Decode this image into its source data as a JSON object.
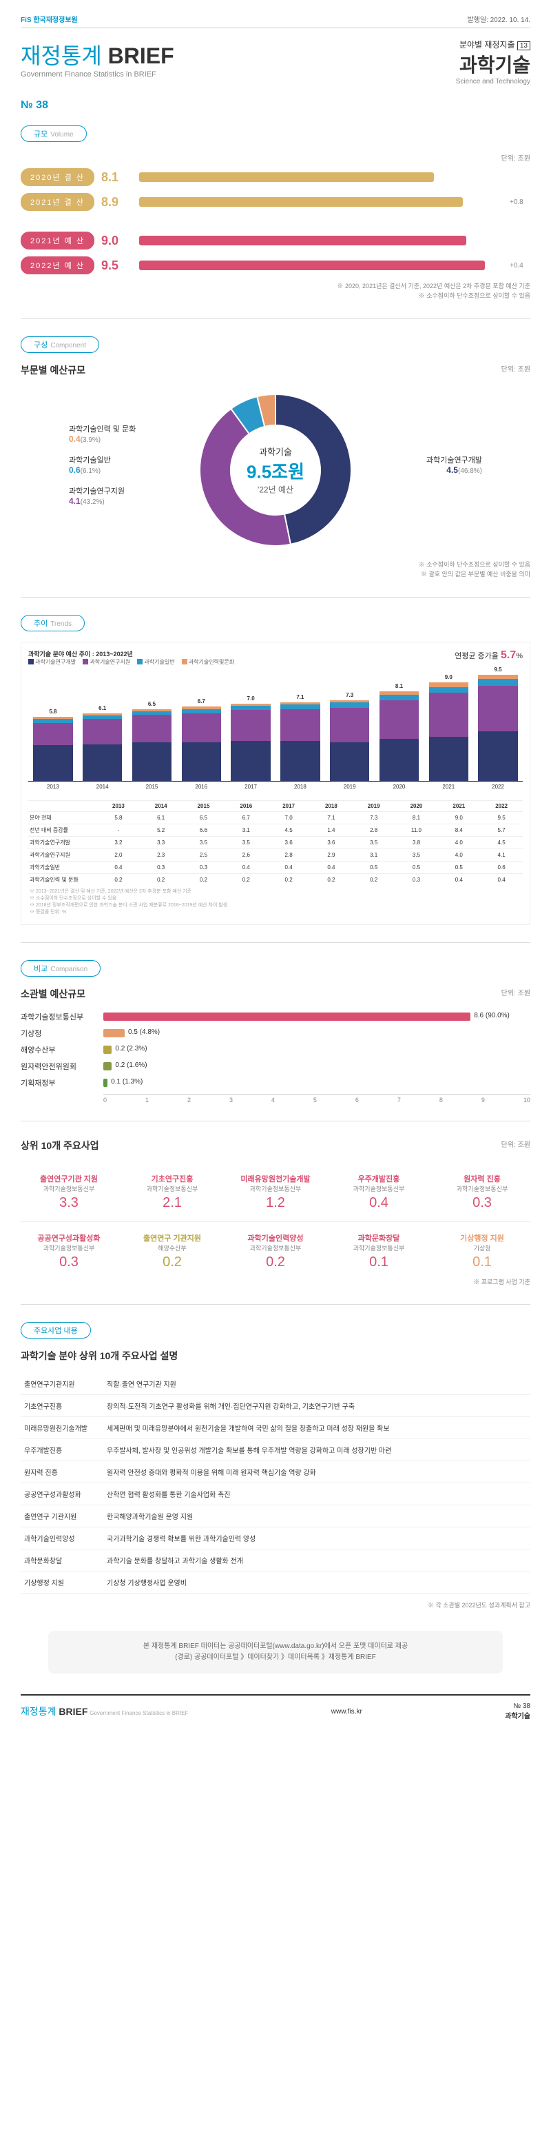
{
  "meta": {
    "logo": "FiS 한국재정정보원",
    "pub_date": "발행일: 2022. 10. 14.",
    "main_title_a": "재정통계",
    "main_title_b": "BRIEF",
    "sub_en": "Government Finance Statistics in BRIEF",
    "category": "분야별 재정지출",
    "category_num": "13",
    "topic": "과학기술",
    "topic_en": "Science and Technology",
    "issue": "№ 38"
  },
  "volume": {
    "label": "규모",
    "label_en": "Volume",
    "unit": "단위: 조원",
    "rows": [
      {
        "badge": "2020년 결 산",
        "value": "8.1",
        "bar_pct": 81,
        "color": "#d9b366",
        "value_color": "#d9b366"
      },
      {
        "badge": "2021년 결 산",
        "value": "8.9",
        "bar_pct": 89,
        "color": "#d9b366",
        "value_color": "#d9b366",
        "diff": "+0.8"
      },
      {
        "gap": true
      },
      {
        "badge": "2021년 예 산",
        "value": "9.0",
        "bar_pct": 90,
        "color": "#d94f70",
        "value_color": "#d94f70"
      },
      {
        "badge": "2022년 예 산",
        "value": "9.5",
        "bar_pct": 95,
        "color": "#d94f70",
        "value_color": "#d94f70",
        "diff": "+0.4"
      }
    ],
    "footnotes": [
      "※ 2020, 2021년은 결산서 기준, 2022년 예산은 2차 추경분 포함 예산 기준",
      "※ 소수점이하 단수조정으로 상이할 수 있음"
    ]
  },
  "component": {
    "label": "구성",
    "label_en": "Component",
    "heading": "부문별 예산규모",
    "unit": "단위: 조원",
    "center": {
      "t1": "과학기술",
      "t2": "9.5조원",
      "t3": "'22년 예산"
    },
    "left": [
      {
        "name": "과학기술인력 및 문화",
        "val": "0.4",
        "pct": "(3.9%)",
        "color": "#e89b6a"
      },
      {
        "name": "과학기술일반",
        "val": "0.6",
        "pct": "(6.1%)",
        "color": "#2a99c9"
      },
      {
        "name": "과학기술연구지원",
        "val": "4.1",
        "pct": "(43.2%)",
        "color": "#8a4a9c"
      }
    ],
    "right": [
      {
        "name": "과학기술연구개발",
        "val": "4.5",
        "pct": "(46.8%)",
        "color": "#2f3a6e"
      }
    ],
    "slices": [
      {
        "pct": 46.8,
        "color": "#2f3a6e"
      },
      {
        "pct": 43.2,
        "color": "#8a4a9c"
      },
      {
        "pct": 6.1,
        "color": "#2a99c9"
      },
      {
        "pct": 3.9,
        "color": "#e89b6a"
      }
    ],
    "footnotes": [
      "※ 소수점이하 단수조정으로 상이할 수 있음",
      "※ 괄호 안의 값은 부문별 예산 비중을 의미"
    ]
  },
  "trends": {
    "label": "추이",
    "label_en": "Trends",
    "title": "과학기술 분야 예산 추이 : 2013~2022년",
    "growth_label": "연평균 증가율",
    "growth_val": "5.7",
    "growth_unit": "%",
    "legends": [
      {
        "name": "과학기술연구개발",
        "color": "#2f3a6e"
      },
      {
        "name": "과학기술연구지원",
        "color": "#8a4a9c"
      },
      {
        "name": "과학기술일반",
        "color": "#2a99c9"
      },
      {
        "name": "과학기술인력및문화",
        "color": "#e89b6a"
      }
    ],
    "years": [
      "2013",
      "2014",
      "2015",
      "2016",
      "2017",
      "2018",
      "2019",
      "2020",
      "2021",
      "2022"
    ],
    "totals": [
      "5.8",
      "6.1",
      "6.5",
      "6.7",
      "7.0",
      "7.1",
      "7.3",
      "8.1",
      "9.0",
      "9.5"
    ],
    "stacks_color": [
      "#2f3a6e",
      "#8a4a9c",
      "#2a99c9",
      "#e89b6a"
    ],
    "stacks": [
      [
        3.2,
        2.0,
        0.4,
        0.2
      ],
      [
        3.3,
        2.3,
        0.3,
        0.2
      ],
      [
        3.5,
        2.5,
        0.3,
        0.2
      ],
      [
        3.5,
        2.6,
        0.4,
        0.2
      ],
      [
        3.6,
        2.8,
        0.4,
        0.2
      ],
      [
        3.6,
        2.9,
        0.4,
        0.2
      ],
      [
        3.5,
        3.1,
        0.5,
        0.2
      ],
      [
        3.8,
        3.5,
        0.5,
        0.3
      ],
      [
        4.0,
        4.0,
        0.5,
        0.4
      ],
      [
        4.5,
        4.1,
        0.6,
        0.4
      ]
    ],
    "line_color": "#d94f70",
    "line_values": [
      null,
      5.2,
      6.6,
      3.1,
      4.5,
      1.4,
      2.8,
      11.0,
      8.4,
      5.7
    ],
    "max_total": 10,
    "table_rows": [
      {
        "name": "분야 전체",
        "vals": [
          "5.8",
          "6.1",
          "6.5",
          "6.7",
          "7.0",
          "7.1",
          "7.3",
          "8.1",
          "9.0",
          "9.5"
        ]
      },
      {
        "name": "전년 대비 증감률",
        "vals": [
          "-",
          "5.2",
          "6.6",
          "3.1",
          "4.5",
          "1.4",
          "2.8",
          "11.0",
          "8.4",
          "5.7"
        ]
      },
      {
        "name": "과학기술연구개발",
        "vals": [
          "3.2",
          "3.3",
          "3.5",
          "3.5",
          "3.6",
          "3.6",
          "3.5",
          "3.8",
          "4.0",
          "4.5"
        ]
      },
      {
        "name": "과학기술연구지원",
        "vals": [
          "2.0",
          "2.3",
          "2.5",
          "2.6",
          "2.8",
          "2.9",
          "3.1",
          "3.5",
          "4.0",
          "4.1"
        ]
      },
      {
        "name": "과학기술일반",
        "vals": [
          "0.4",
          "0.3",
          "0.3",
          "0.4",
          "0.4",
          "0.4",
          "0.5",
          "0.5",
          "0.5",
          "0.6"
        ]
      },
      {
        "name": "과학기술인력 및 문화",
        "vals": [
          "0.2",
          "0.2",
          "0.2",
          "0.2",
          "0.2",
          "0.2",
          "0.2",
          "0.3",
          "0.4",
          "0.4"
        ]
      }
    ],
    "table_footnotes": [
      "※ 2013~2021년은 결산 및 예산 기준, 2022년 예산은 2차 추경분 포함 예산 기준",
      "※ 소수점이하 단수조정으로 상이할 수 있음",
      "※ 2018년 정부조직개편으로 인한 과학기술 분야 소관 사업 재분류로 2018~2019년 예산 차이 발생",
      "※ 증감률 단위: %"
    ]
  },
  "comparison": {
    "label": "비교",
    "label_en": "Comparison",
    "heading": "소관별 예산규모",
    "unit": "단위: 조원",
    "max": 10,
    "rows": [
      {
        "name": "과학기술정보통신부",
        "val": "8.6",
        "pct": "(90.0%)",
        "bar": 86,
        "color": "#d94f70"
      },
      {
        "name": "기상청",
        "val": "0.5",
        "pct": "(4.8%)",
        "bar": 5,
        "color": "#e89b6a"
      },
      {
        "name": "해양수산부",
        "val": "0.2",
        "pct": "(2.3%)",
        "bar": 2,
        "color": "#b5a642"
      },
      {
        "name": "원자력안전위원회",
        "val": "0.2",
        "pct": "(1.6%)",
        "bar": 2,
        "color": "#889944"
      },
      {
        "name": "기획재정부",
        "val": "0.1",
        "pct": "(1.3%)",
        "bar": 1,
        "color": "#5a9944"
      }
    ],
    "axis": [
      "0",
      "1",
      "2",
      "3",
      "4",
      "5",
      "6",
      "7",
      "8",
      "9",
      "10"
    ]
  },
  "projects": {
    "heading": "상위 10개 주요사업",
    "unit": "단위: 조원",
    "items": [
      {
        "name": "출연연구기관 지원",
        "dept": "과학기술정보통신부",
        "val": "3.3",
        "color": "#d94f70"
      },
      {
        "name": "기초연구진흥",
        "dept": "과학기술정보통신부",
        "val": "2.1",
        "color": "#d94f70"
      },
      {
        "name": "미래유망원천기술개발",
        "dept": "과학기술정보통신부",
        "val": "1.2",
        "color": "#d94f70"
      },
      {
        "name": "우주개발진흥",
        "dept": "과학기술정보통신부",
        "val": "0.4",
        "color": "#d94f70"
      },
      {
        "name": "원자력 진흥",
        "dept": "과학기술정보통신부",
        "val": "0.3",
        "color": "#d94f70"
      },
      {
        "name": "공공연구성과활성화",
        "dept": "과학기술정보통신부",
        "val": "0.3",
        "color": "#d94f70"
      },
      {
        "name": "출연연구 기관지원",
        "dept": "해양수산부",
        "val": "0.2",
        "color": "#b5a642"
      },
      {
        "name": "과학기술인력양성",
        "dept": "과학기술정보통신부",
        "val": "0.2",
        "color": "#d94f70"
      },
      {
        "name": "과학문화창달",
        "dept": "과학기술정보통신부",
        "val": "0.1",
        "color": "#d94f70"
      },
      {
        "name": "기상행정 지원",
        "dept": "기상청",
        "val": "0.1",
        "color": "#e89b6a"
      }
    ],
    "footnote": "※ 프로그램 사업 기준"
  },
  "descriptions": {
    "label": "주요사업 내용",
    "heading": "과학기술 분야 상위 10개 주요사업 설명",
    "rows": [
      {
        "name": "출연연구기관지원",
        "desc": "직할·출연 연구기관 지원"
      },
      {
        "name": "기초연구진흥",
        "desc": "창의적·도전적 기초연구 활성화를 위해 개인·집단연구지원 강화하고, 기초연구기반 구축"
      },
      {
        "name": "미래유망원천기술개발",
        "desc": "세계판매 및 미래유망분야에서 원천기술을 개발하여 국민 삶의 질을 창출하고 미래 성장 재원을 확보"
      },
      {
        "name": "우주개발진흥",
        "desc": "우주발사체, 발사장 및 인공위성 개발기술 확보를 통해 우주개발 역량을 강화하고 미래 성장기반 마련"
      },
      {
        "name": "원자력 진흥",
        "desc": "원자력 안전성 증대와 평화적 이용을 위해 미래 원자력 핵심기술 역량 강화"
      },
      {
        "name": "공공연구성과활성화",
        "desc": "산학연 협력 활성화를 통한 기술사업화 촉진"
      },
      {
        "name": "출연연구 기관지원",
        "desc": "한국해양과학기술원 운영 지원"
      },
      {
        "name": "과학기술인력양성",
        "desc": "국가과학기술 경쟁력 확보를 위한 과학기술인력 양성"
      },
      {
        "name": "과학문화창달",
        "desc": "과학기술 문화를 창달하고 과학기술 생활화 전개"
      },
      {
        "name": "기상행정 지원",
        "desc": "기상청 기상행정사업 운영비"
      }
    ],
    "footnote": "※ 각 소관별 2022년도 성과계획서 참고"
  },
  "source": {
    "line1": "본 재정통계 BRIEF 데이터는 공공데이터포털(www.data.go.kr)에서 오픈 포맷 데이터로 제공",
    "line2": "(경로) 공공데이터포털 》데이터찾기 》데이터목록 》재정통계 BRIEF"
  },
  "footer": {
    "brand_a": "재정통계",
    "brand_b": "BRIEF",
    "brand_sub": "Government Finance Statistics in BRIEF",
    "url": "www.fis.kr",
    "issue": "№ 38",
    "topic": "과학기술"
  }
}
